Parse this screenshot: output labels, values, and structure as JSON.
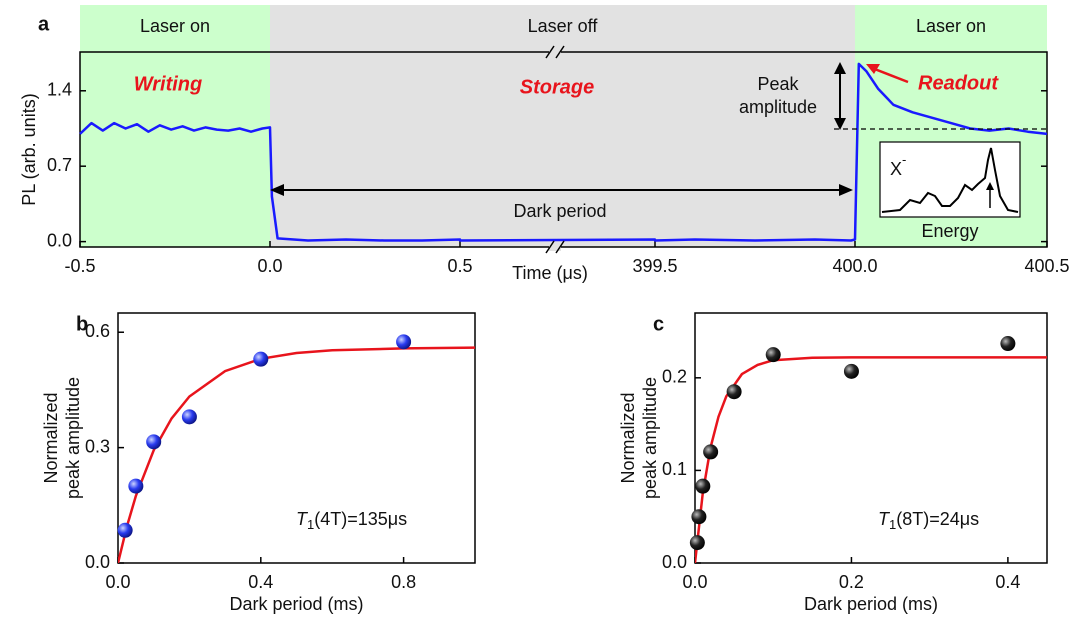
{
  "chart_data": [
    {
      "type": "line",
      "label": "a",
      "xlabel": "Time (μs)",
      "ylabel": "PL (arb. units)",
      "xlim": [
        -0.5,
        400.5
      ],
      "xticks": [
        -0.5,
        {
          "value": 0,
          "label": "0.0"
        },
        0.5,
        399.5,
        {
          "value": 400,
          "label": "400.0"
        },
        400.5
      ],
      "ylim": [
        -0.05,
        1.76
      ],
      "yticks": [
        {
          "value": 0,
          "label": "0.0"
        },
        0.7,
        1.4
      ],
      "regions": [
        {
          "label": "Laser on",
          "x": [
            -0.5,
            0
          ],
          "color": "#ccffcc"
        },
        {
          "label": "Laser off",
          "x": [
            0,
            400
          ],
          "color": "#e2e2e2"
        },
        {
          "label": "Laser on",
          "x": [
            400,
            400.5
          ],
          "color": "#ccffcc"
        }
      ],
      "series": [
        {
          "color": "#1a1aff",
          "x": [
            -0.5,
            -0.47,
            -0.44,
            -0.41,
            -0.38,
            -0.35,
            -0.32,
            -0.29,
            -0.26,
            -0.23,
            -0.2,
            -0.17,
            -0.14,
            -0.11,
            -0.08,
            -0.05,
            -0.02,
            0.0,
            0.005,
            0.02,
            0.1,
            0.2,
            0.3,
            0.4,
            0.5,
            0.6,
            0.72,
            399.3,
            399.45,
            399.6,
            399.75,
            399.9,
            399.99,
            400.0,
            400.01,
            400.03,
            400.06,
            400.1,
            400.15,
            400.2,
            400.25,
            400.3,
            400.35,
            400.4,
            400.45,
            400.5
          ],
          "values": [
            1.0,
            1.1,
            1.03,
            1.1,
            1.05,
            1.09,
            1.02,
            1.08,
            1.04,
            1.07,
            1.03,
            1.06,
            1.04,
            1.03,
            1.05,
            1.02,
            1.05,
            1.06,
            0.42,
            0.03,
            0.01,
            0.02,
            0.01,
            0.01,
            0.02,
            0.01,
            0.01,
            0.02,
            0.01,
            0.02,
            0.01,
            0.02,
            0.01,
            0.02,
            1.65,
            1.58,
            1.42,
            1.27,
            1.2,
            1.15,
            1.1,
            1.05,
            1.03,
            1.05,
            1.02,
            1.0
          ]
        }
      ],
      "annotations": {
        "writing": "Writing",
        "storage": "Storage",
        "readout": "Readout",
        "peak": [
          "Peak",
          "amplitude"
        ],
        "dark": "Dark period"
      },
      "inset": {
        "label": "X",
        "superscript": "-",
        "xlabel": "Energy"
      }
    },
    {
      "type": "scatter",
      "label": "b",
      "xlabel": "Dark period (ms)",
      "ylabel": [
        "Normalized",
        "peak amplitude"
      ],
      "xlim": [
        0,
        1.0
      ],
      "xticks": [
        {
          "value": 0,
          "label": "0.0"
        },
        0.4,
        0.8
      ],
      "ylim": [
        0,
        0.65
      ],
      "yticks": [
        {
          "value": 0,
          "label": "0.0"
        },
        0.3,
        0.6
      ],
      "color": "#2a3cf0",
      "x": [
        0.02,
        0.05,
        0.1,
        0.2,
        0.4,
        0.8
      ],
      "values": [
        0.085,
        0.2,
        0.315,
        0.38,
        0.53,
        0.575
      ],
      "fit": {
        "color": "#e8141c",
        "x": [
          0,
          0.025,
          0.05,
          0.1,
          0.15,
          0.2,
          0.3,
          0.4,
          0.5,
          0.6,
          0.8,
          1.0
        ],
        "values": [
          0,
          0.095,
          0.174,
          0.293,
          0.376,
          0.433,
          0.499,
          0.531,
          0.546,
          0.553,
          0.558,
          0.56
        ]
      },
      "annotation": {
        "symbol": "T",
        "subscript": "1",
        "text": "(4T)=135μs"
      }
    },
    {
      "type": "scatter",
      "label": "c",
      "xlabel": "Dark period (ms)",
      "ylabel": [
        "Normalized",
        "peak amplitude"
      ],
      "xlim": [
        0,
        0.45
      ],
      "xticks": [
        {
          "value": 0,
          "label": "0.0"
        },
        0.2,
        0.4
      ],
      "ylim": [
        0,
        0.27
      ],
      "yticks": [
        {
          "value": 0,
          "label": "0.0"
        },
        0.1,
        0.2
      ],
      "color": "#222222",
      "x": [
        0.003,
        0.005,
        0.01,
        0.02,
        0.05,
        0.1,
        0.2,
        0.4
      ],
      "values": [
        0.022,
        0.05,
        0.083,
        0.12,
        0.185,
        0.225,
        0.207,
        0.237
      ],
      "fit": {
        "color": "#e8141c",
        "x": [
          0,
          0.01,
          0.02,
          0.03,
          0.04,
          0.06,
          0.08,
          0.1,
          0.15,
          0.2,
          0.3,
          0.45
        ],
        "values": [
          0,
          0.0757,
          0.125,
          0.158,
          0.18,
          0.204,
          0.214,
          0.219,
          0.2216,
          0.222,
          0.222,
          0.222
        ]
      },
      "annotation": {
        "symbol": "T",
        "subscript": "1",
        "text": "(8T)=24μs"
      }
    }
  ]
}
